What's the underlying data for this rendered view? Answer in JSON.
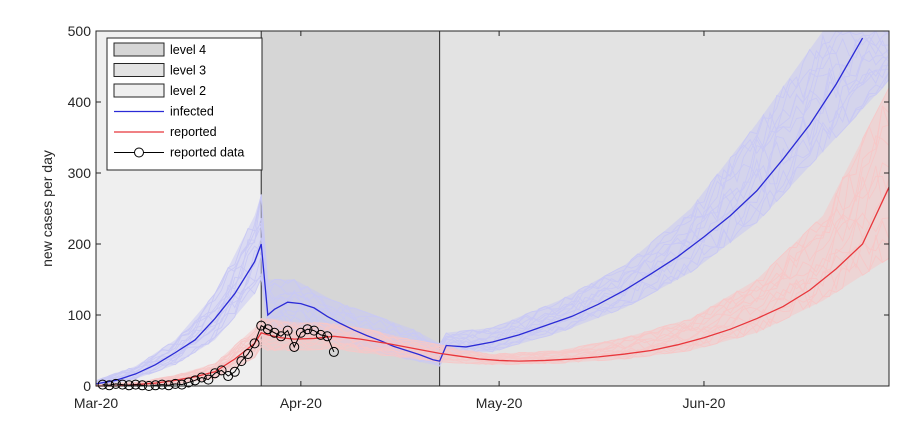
{
  "chart_data": {
    "type": "line",
    "ylabel": "new cases per day",
    "ylim": [
      0,
      500
    ],
    "yticks": [
      0,
      100,
      200,
      300,
      400,
      500
    ],
    "xlim_day": [
      0,
      120
    ],
    "xticks": [
      {
        "day": 0,
        "label": "Mar-20"
      },
      {
        "day": 31,
        "label": "Apr-20"
      },
      {
        "day": 61,
        "label": "May-20"
      },
      {
        "day": 92,
        "label": "Jun-20"
      }
    ],
    "phases": [
      {
        "name": "level 2",
        "start_day": 0,
        "end_day": 25,
        "color": "#efefef"
      },
      {
        "name": "level 4",
        "start_day": 25,
        "end_day": 52,
        "color": "#d6d6d6"
      },
      {
        "name": "level 3",
        "start_day": 52,
        "end_day": 120,
        "color": "#e3e3e3"
      }
    ],
    "legend": [
      {
        "label": "level 4",
        "kind": "patch",
        "color": "#d6d6d6"
      },
      {
        "label": "level 3",
        "kind": "patch",
        "color": "#e3e3e3"
      },
      {
        "label": "level 2",
        "kind": "patch",
        "color": "#efefef"
      },
      {
        "label": "infected",
        "kind": "line",
        "color": "#2b2bd6"
      },
      {
        "label": "reported",
        "kind": "line",
        "color": "#e8363b"
      },
      {
        "label": "reported data",
        "kind": "marker",
        "color": "#000000"
      }
    ],
    "series": [
      {
        "name": "infected",
        "color": "#2b2bd6",
        "x": [
          0,
          3,
          6,
          9,
          12,
          15,
          18,
          21,
          24,
          25,
          26,
          27,
          29,
          31,
          33,
          35,
          37,
          39,
          41,
          43,
          45,
          47,
          49,
          51,
          52,
          53,
          56,
          60,
          64,
          68,
          72,
          76,
          80,
          84,
          88,
          92,
          96,
          100,
          104,
          108,
          112,
          116
        ],
        "y": [
          3,
          8,
          17,
          30,
          47,
          65,
          95,
          130,
          175,
          200,
          100,
          108,
          118,
          116,
          110,
          98,
          88,
          79,
          71,
          64,
          56,
          50,
          44,
          37,
          35,
          57,
          55,
          62,
          72,
          85,
          98,
          115,
          135,
          158,
          182,
          210,
          240,
          275,
          320,
          368,
          425,
          490
        ]
      },
      {
        "name": "reported",
        "color": "#e8363b",
        "x": [
          0,
          3,
          6,
          9,
          12,
          15,
          18,
          21,
          24,
          25,
          26,
          28,
          30,
          33,
          36,
          40,
          44,
          48,
          52,
          55,
          58,
          61,
          64,
          68,
          72,
          76,
          80,
          84,
          88,
          92,
          96,
          100,
          104,
          108,
          112,
          116,
          120
        ],
        "y": [
          0,
          0,
          2,
          4,
          8,
          13,
          20,
          38,
          60,
          75,
          72,
          68,
          66,
          67,
          70,
          66,
          60,
          53,
          46,
          42,
          38,
          36,
          35,
          36,
          38,
          41,
          45,
          50,
          58,
          68,
          80,
          95,
          112,
          135,
          165,
          200,
          280
        ]
      }
    ],
    "reported_data": {
      "name": "reported data",
      "x": [
        1,
        2,
        3,
        4,
        5,
        6,
        7,
        8,
        9,
        10,
        11,
        12,
        13,
        14,
        15,
        16,
        17,
        18,
        19,
        20,
        21,
        22,
        23,
        24,
        25,
        26,
        27,
        28,
        29,
        30,
        31,
        32,
        33,
        34,
        35,
        36
      ],
      "y": [
        2,
        1,
        3,
        2,
        1,
        2,
        1,
        0,
        1,
        2,
        1,
        3,
        2,
        5,
        8,
        12,
        9,
        18,
        22,
        14,
        20,
        35,
        45,
        60,
        85,
        80,
        75,
        70,
        78,
        55,
        75,
        80,
        78,
        72,
        70,
        48
      ]
    },
    "envelopes": [
      {
        "name": "infected-simulations",
        "color": "#c9c9f4",
        "x": [
          0,
          6,
          12,
          18,
          24,
          25,
          26,
          30,
          36,
          42,
          48,
          52,
          53,
          60,
          70,
          80,
          90,
          100,
          110,
          120
        ],
        "lower": [
          1,
          10,
          30,
          65,
          130,
          150,
          80,
          80,
          62,
          48,
          36,
          28,
          45,
          48,
          75,
          110,
          160,
          230,
          330,
          430
        ],
        "upper": [
          8,
          28,
          65,
          130,
          240,
          270,
          150,
          150,
          120,
          100,
          80,
          60,
          75,
          82,
          120,
          170,
          250,
          370,
          500,
          500
        ]
      },
      {
        "name": "reported-simulations",
        "color": "#f6c8c8",
        "x": [
          0,
          6,
          12,
          18,
          24,
          25,
          26,
          30,
          36,
          42,
          48,
          52,
          55,
          60,
          70,
          80,
          90,
          100,
          110,
          120
        ],
        "lower": [
          0,
          0,
          3,
          10,
          40,
          55,
          50,
          50,
          52,
          45,
          38,
          34,
          32,
          30,
          32,
          38,
          50,
          75,
          120,
          180
        ],
        "upper": [
          2,
          5,
          15,
          32,
          82,
          95,
          95,
          90,
          88,
          78,
          65,
          58,
          52,
          45,
          50,
          68,
          95,
          150,
          240,
          420
        ]
      }
    ]
  }
}
